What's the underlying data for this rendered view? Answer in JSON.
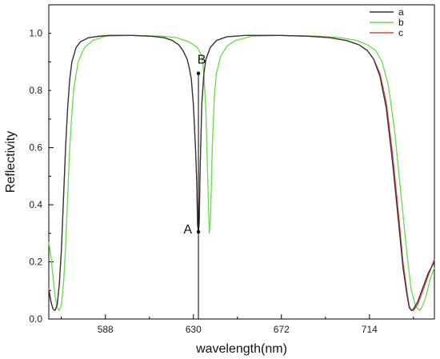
{
  "chart_data": {
    "type": "line",
    "xlabel": "wavelength(nm)",
    "ylabel": "Reflectivity",
    "xlim": [
      561,
      745
    ],
    "ylim": [
      0,
      1.1
    ],
    "x_ticks": [
      588,
      630,
      672,
      714
    ],
    "y_ticks": [
      0.0,
      0.2,
      0.4,
      0.6,
      0.8,
      1.0
    ],
    "grid": false,
    "legend_position": "top-right",
    "series": [
      {
        "name": "a",
        "color": "#333333",
        "points": [
          [
            561,
            0.1
          ],
          [
            562,
            0.06
          ],
          [
            563,
            0.035
          ],
          [
            564,
            0.03
          ],
          [
            565,
            0.05
          ],
          [
            566,
            0.12
          ],
          [
            567,
            0.24
          ],
          [
            568,
            0.42
          ],
          [
            569,
            0.6
          ],
          [
            570,
            0.74
          ],
          [
            571,
            0.84
          ],
          [
            572,
            0.9
          ],
          [
            574,
            0.95
          ],
          [
            576,
            0.97
          ],
          [
            580,
            0.985
          ],
          [
            585,
            0.99
          ],
          [
            590,
            0.993
          ],
          [
            600,
            0.993
          ],
          [
            610,
            0.99
          ],
          [
            616,
            0.985
          ],
          [
            620,
            0.975
          ],
          [
            623,
            0.96
          ],
          [
            625,
            0.94
          ],
          [
            627,
            0.91
          ],
          [
            628,
            0.88
          ],
          [
            629,
            0.84
          ],
          [
            630,
            0.75
          ],
          [
            631,
            0.6
          ],
          [
            631.6,
            0.48
          ],
          [
            632,
            0.33
          ],
          [
            632.4,
            0.3
          ],
          [
            632.8,
            0.34
          ],
          [
            633.2,
            0.52
          ],
          [
            634,
            0.75
          ],
          [
            635,
            0.86
          ],
          [
            636,
            0.91
          ],
          [
            638,
            0.95
          ],
          [
            641,
            0.975
          ],
          [
            646,
            0.988
          ],
          [
            655,
            0.993
          ],
          [
            670,
            0.993
          ],
          [
            685,
            0.99
          ],
          [
            695,
            0.985
          ],
          [
            703,
            0.975
          ],
          [
            709,
            0.96
          ],
          [
            713,
            0.94
          ],
          [
            716,
            0.91
          ],
          [
            719,
            0.85
          ],
          [
            722,
            0.74
          ],
          [
            725,
            0.55
          ],
          [
            728,
            0.33
          ],
          [
            730,
            0.18
          ],
          [
            732,
            0.08
          ],
          [
            733,
            0.04
          ],
          [
            734,
            0.03
          ],
          [
            735,
            0.035
          ],
          [
            737,
            0.06
          ],
          [
            739,
            0.1
          ],
          [
            742,
            0.16
          ],
          [
            745,
            0.2
          ]
        ]
      },
      {
        "name": "b",
        "color": "#66dd44",
        "points": [
          [
            561,
            0.27
          ],
          [
            562,
            0.22
          ],
          [
            563,
            0.15
          ],
          [
            564,
            0.08
          ],
          [
            565,
            0.04
          ],
          [
            566,
            0.03
          ],
          [
            567,
            0.05
          ],
          [
            568,
            0.12
          ],
          [
            569,
            0.25
          ],
          [
            570,
            0.43
          ],
          [
            571,
            0.6
          ],
          [
            572,
            0.72
          ],
          [
            573,
            0.81
          ],
          [
            575,
            0.9
          ],
          [
            578,
            0.95
          ],
          [
            582,
            0.975
          ],
          [
            588,
            0.99
          ],
          [
            600,
            0.993
          ],
          [
            615,
            0.99
          ],
          [
            622,
            0.985
          ],
          [
            628,
            0.97
          ],
          [
            632,
            0.95
          ],
          [
            634,
            0.92
          ],
          [
            635,
            0.86
          ],
          [
            636,
            0.72
          ],
          [
            637,
            0.45
          ],
          [
            637.6,
            0.3
          ],
          [
            638.2,
            0.36
          ],
          [
            639,
            0.6
          ],
          [
            640,
            0.78
          ],
          [
            641,
            0.86
          ],
          [
            643,
            0.92
          ],
          [
            646,
            0.955
          ],
          [
            650,
            0.975
          ],
          [
            658,
            0.99
          ],
          [
            672,
            0.993
          ],
          [
            690,
            0.99
          ],
          [
            700,
            0.985
          ],
          [
            708,
            0.975
          ],
          [
            713,
            0.96
          ],
          [
            717,
            0.94
          ],
          [
            720,
            0.9
          ],
          [
            723,
            0.82
          ],
          [
            726,
            0.66
          ],
          [
            729,
            0.44
          ],
          [
            732,
            0.22
          ],
          [
            734,
            0.1
          ],
          [
            736,
            0.045
          ],
          [
            738,
            0.03
          ],
          [
            739,
            0.04
          ],
          [
            741,
            0.08
          ],
          [
            743,
            0.14
          ],
          [
            745,
            0.18
          ]
        ]
      },
      {
        "name": "c",
        "color": "#dd4444",
        "points": [
          [
            561,
            0.11
          ],
          [
            562,
            0.065
          ],
          [
            563,
            0.035
          ],
          [
            564,
            0.03
          ],
          [
            565,
            0.05
          ],
          [
            566,
            0.12
          ],
          [
            567,
            0.24
          ],
          [
            568,
            0.42
          ],
          [
            569,
            0.6
          ],
          [
            570,
            0.74
          ],
          [
            571,
            0.84
          ],
          [
            572,
            0.9
          ],
          [
            574,
            0.95
          ],
          [
            576,
            0.97
          ],
          [
            580,
            0.985
          ],
          [
            585,
            0.99
          ],
          [
            590,
            0.993
          ],
          [
            600,
            0.993
          ],
          [
            610,
            0.99
          ],
          [
            616,
            0.985
          ],
          [
            620,
            0.975
          ],
          [
            623,
            0.96
          ],
          [
            625,
            0.94
          ],
          [
            627,
            0.91
          ],
          [
            628,
            0.88
          ],
          [
            629,
            0.84
          ],
          [
            630,
            0.75
          ],
          [
            631,
            0.6
          ],
          [
            631.6,
            0.48
          ],
          [
            632,
            0.33
          ],
          [
            632.4,
            0.31
          ],
          [
            632.8,
            0.35
          ],
          [
            633.2,
            0.52
          ],
          [
            634,
            0.75
          ],
          [
            635,
            0.86
          ],
          [
            636,
            0.91
          ],
          [
            638,
            0.95
          ],
          [
            641,
            0.975
          ],
          [
            646,
            0.988
          ],
          [
            655,
            0.993
          ],
          [
            670,
            0.993
          ],
          [
            685,
            0.99
          ],
          [
            695,
            0.985
          ],
          [
            703,
            0.975
          ],
          [
            709,
            0.96
          ],
          [
            713,
            0.94
          ],
          [
            716,
            0.91
          ],
          [
            719,
            0.86
          ],
          [
            722,
            0.76
          ],
          [
            725,
            0.58
          ],
          [
            728,
            0.36
          ],
          [
            730,
            0.2
          ],
          [
            732,
            0.09
          ],
          [
            733,
            0.045
          ],
          [
            734,
            0.03
          ],
          [
            735,
            0.03
          ],
          [
            737,
            0.05
          ],
          [
            739,
            0.09
          ],
          [
            742,
            0.15
          ],
          [
            745,
            0.21
          ]
        ]
      }
    ],
    "annotations": [
      {
        "label": "A",
        "x": 632.4,
        "y": 0.305
      },
      {
        "label": "B",
        "x": 632.4,
        "y": 0.86
      }
    ],
    "marker_line": {
      "x": 632.4,
      "y_from": 0.0,
      "y_to": 0.86
    }
  }
}
